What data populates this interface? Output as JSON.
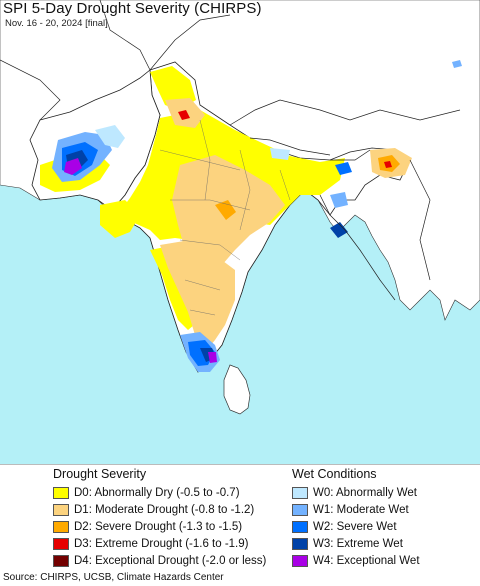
{
  "title": "SPI 5-Day Drought Severity (CHIRPS)",
  "subtitle": "Nov. 16 - 20, 2024 [final]",
  "legend": {
    "drought_heading": "Drought Severity",
    "wet_heading": "Wet Conditions",
    "drought_items": [
      {
        "label": "D0: Abnormally Dry (-0.5 to -0.7)",
        "color": "#ffff00"
      },
      {
        "label": "D1: Moderate Drought (-0.8 to -1.2)",
        "color": "#fcd37f"
      },
      {
        "label": "D2: Severe Drought (-1.3 to -1.5)",
        "color": "#ffaa00"
      },
      {
        "label": "D3: Extreme Drought (-1.6 to -1.9)",
        "color": "#e60000"
      },
      {
        "label": "D4: Exceptional Drought (-2.0 or less)",
        "color": "#730000"
      }
    ],
    "wet_items": [
      {
        "label": "W0: Abnormally Wet",
        "color": "#bee8ff"
      },
      {
        "label": "W1: Moderate Wet",
        "color": "#73b2ff"
      },
      {
        "label": "W2: Severe Wet",
        "color": "#0070ff"
      },
      {
        "label": "W3: Extreme Wet",
        "color": "#0042a8"
      },
      {
        "label": "W4: Exceptional Wet",
        "color": "#a900e6"
      }
    ]
  },
  "source": "Source: CHIRPS, UCSB, Climate Hazards Center",
  "colors": {
    "sea": "#b4f0f7",
    "land": "#ffffff",
    "border": "#222222"
  }
}
